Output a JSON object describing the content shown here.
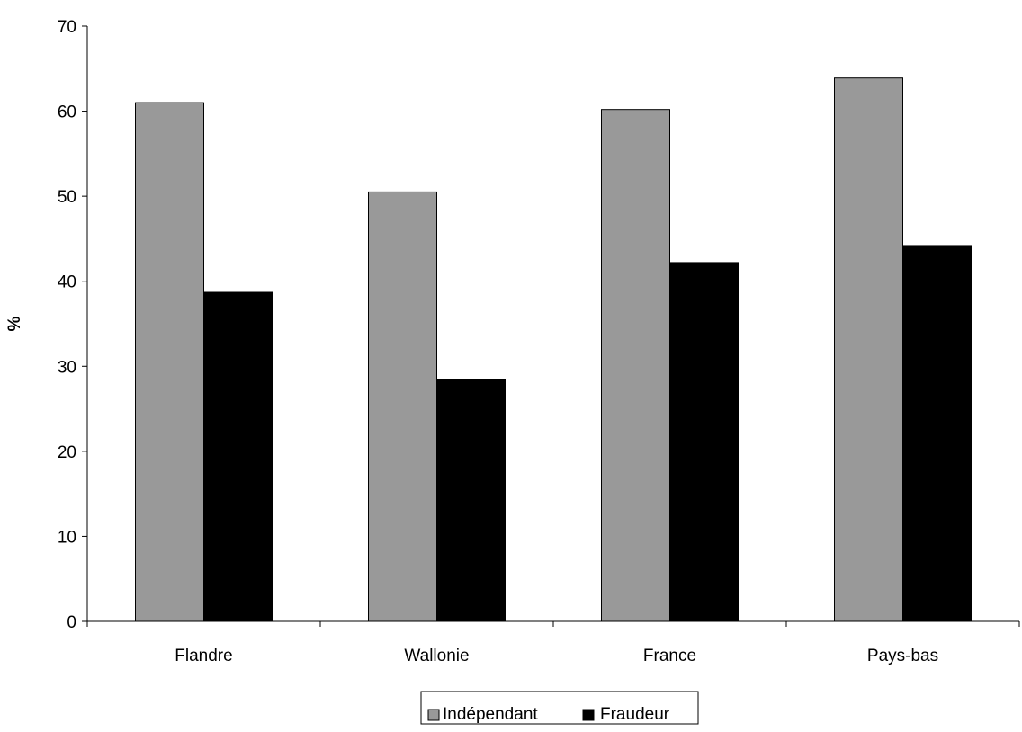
{
  "chart_data": {
    "type": "bar",
    "title": "",
    "xlabel": "",
    "ylabel": "%",
    "ylim": [
      0,
      70
    ],
    "yticks": [
      0,
      10,
      20,
      30,
      40,
      50,
      60,
      70
    ],
    "categories": [
      "Flandre",
      "Wallonie",
      "France",
      "Pays-bas"
    ],
    "series": [
      {
        "name": "Indépendant",
        "color": "#999999",
        "values": [
          61.0,
          50.5,
          60.2,
          63.9
        ]
      },
      {
        "name": "Fraudeur",
        "color": "#000000",
        "values": [
          38.7,
          28.4,
          42.2,
          44.1
        ]
      }
    ],
    "grid": false,
    "legend_position": "bottom"
  }
}
